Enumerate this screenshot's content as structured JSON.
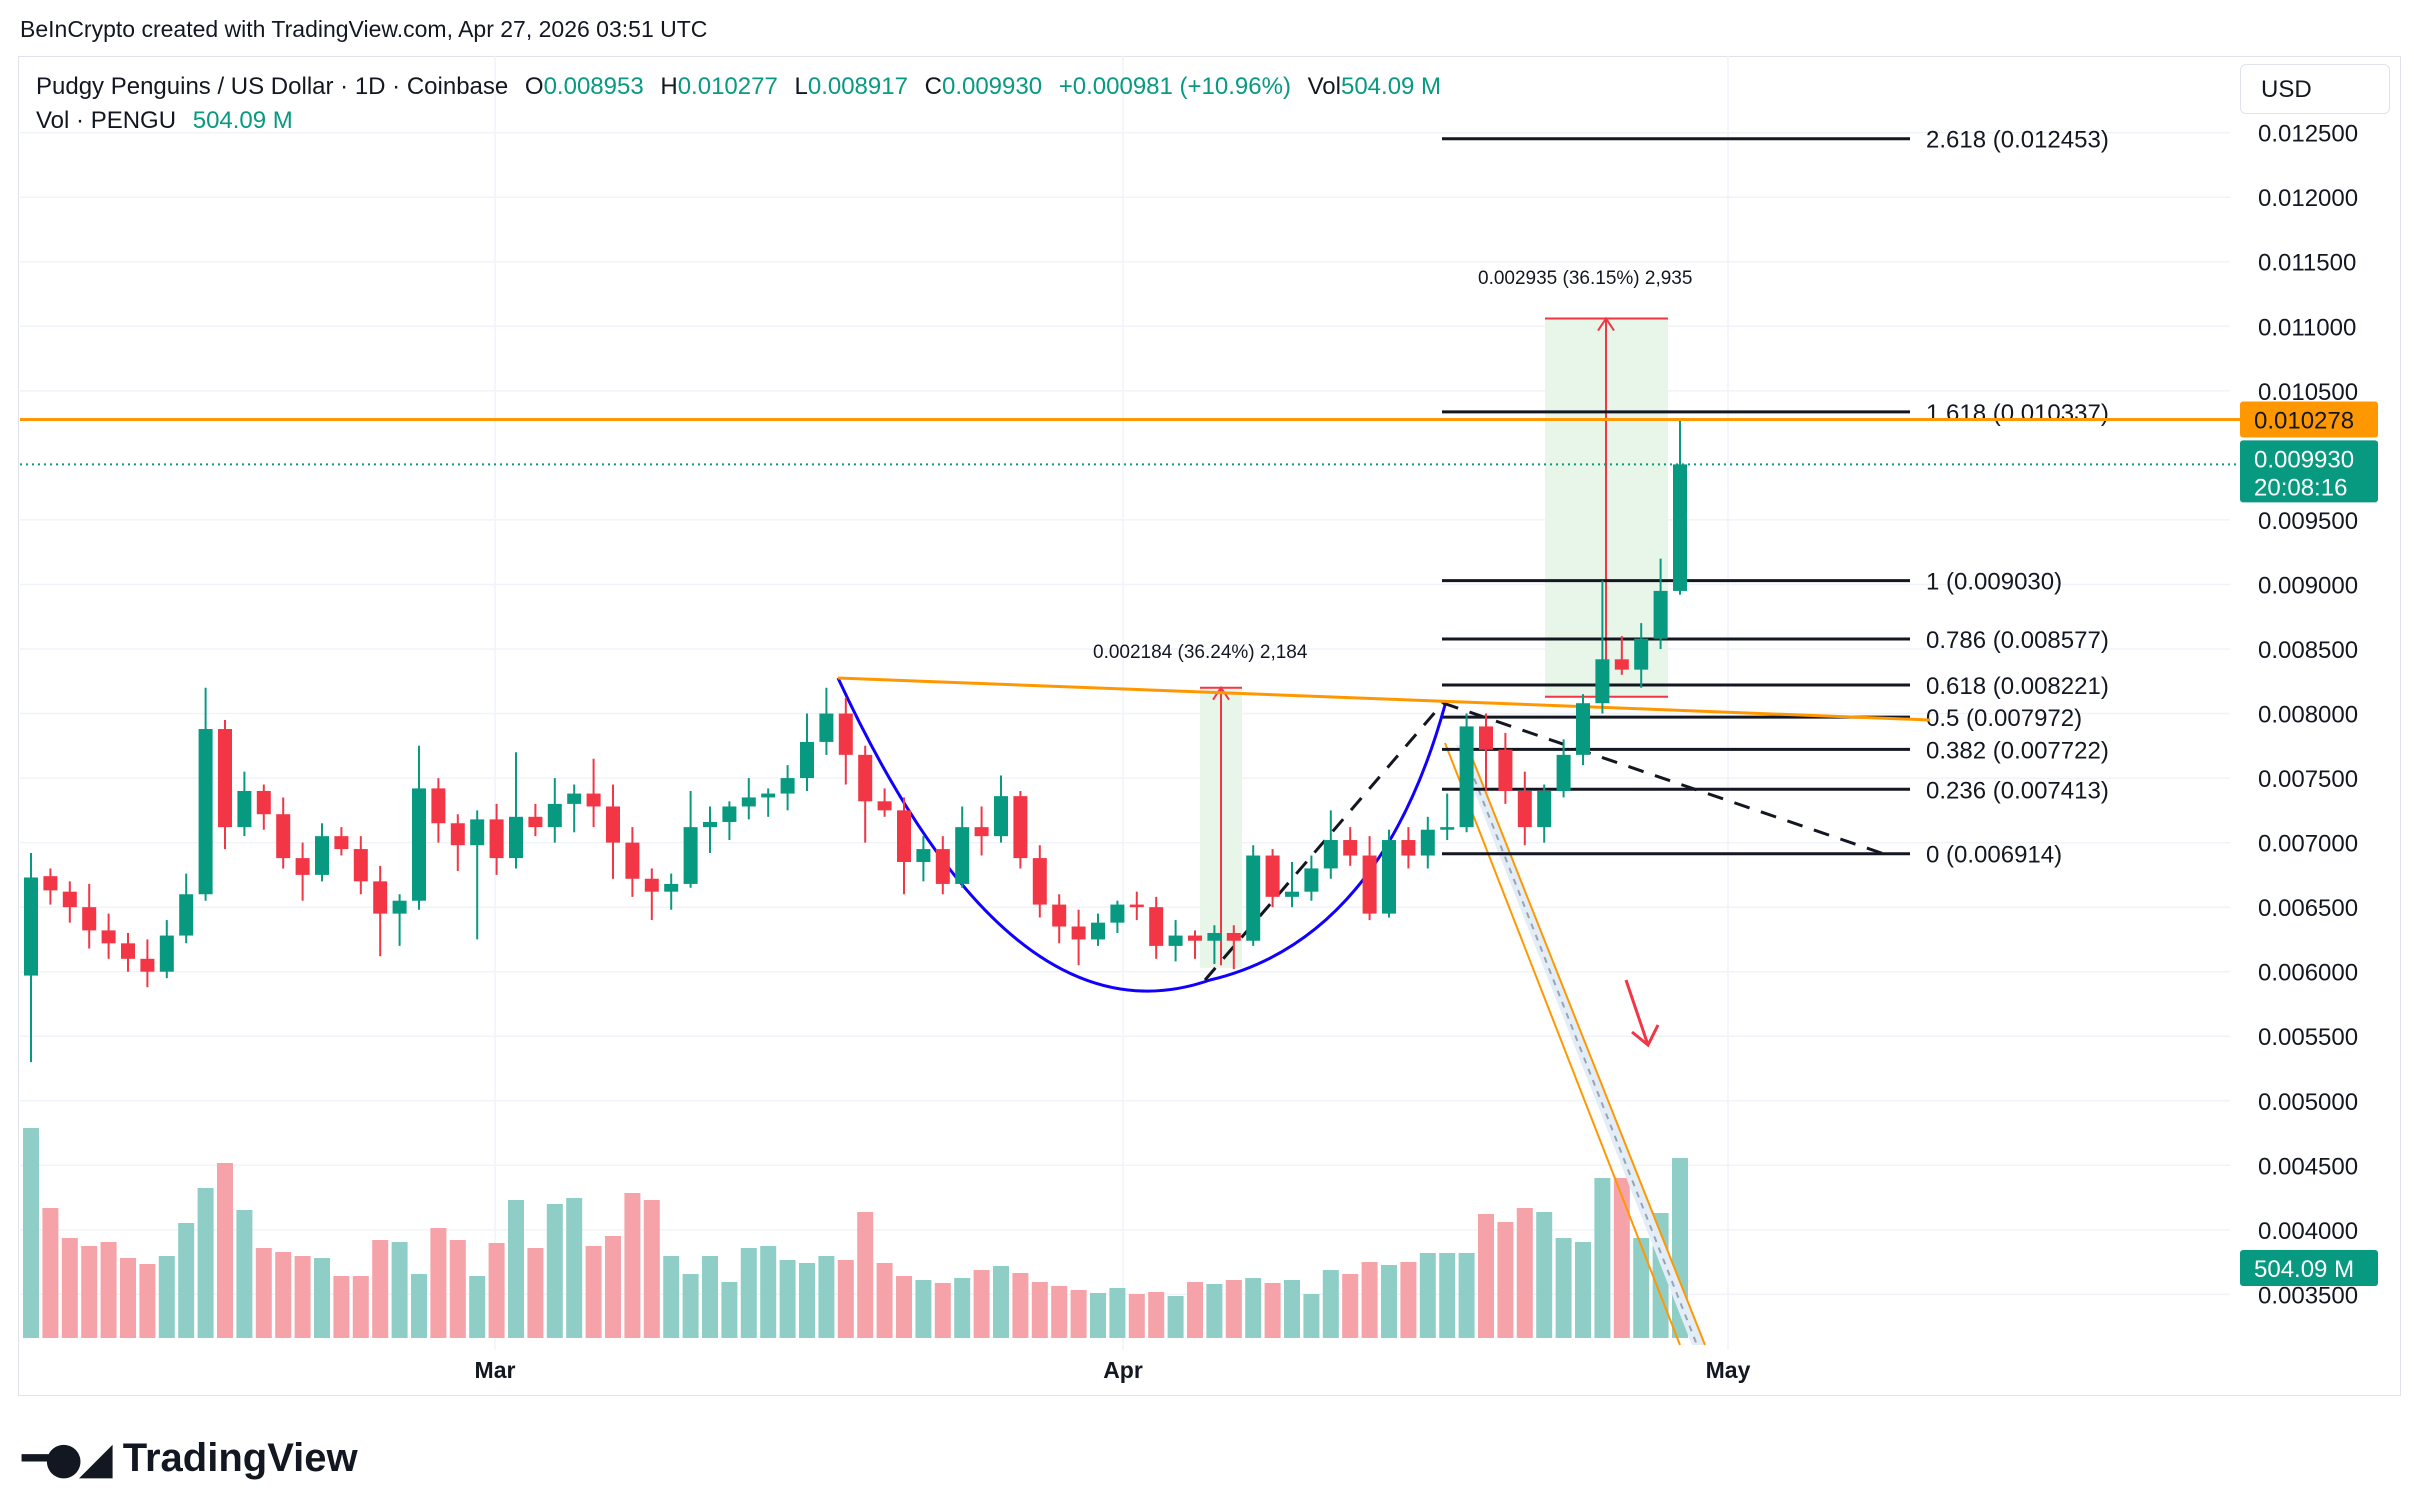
{
  "attribution": "BeInCrypto created with TradingView.com, Apr 27, 2026 03:51 UTC",
  "legend": {
    "symbol": "Pudgy Penguins / US Dollar · 1D · Coinbase",
    "o_label": "O",
    "o_value": "0.008953",
    "h_label": "H",
    "h_value": "0.010277",
    "l_label": "L",
    "l_value": "0.008917",
    "c_label": "C",
    "c_value": "0.009930",
    "change": "+0.000981 (+10.96%)",
    "vol_label": "Vol",
    "vol_value": "504.09 M",
    "vol_line_label": "Vol · PENGU",
    "vol_line_value": "504.09 M"
  },
  "currency_button": "USD",
  "footer_logo_text": "TradingView",
  "colors": {
    "up": "#089981",
    "down": "#f23645",
    "vol_up": "#8fcec7",
    "vol_down": "#f5a3a8",
    "resistance": "#ff9800",
    "curve": "#1000ff",
    "fib": "#131722",
    "measure_box": "#e8f5e9",
    "measure_line": "#f23645"
  },
  "chart_data": {
    "type": "candlestick",
    "title": "Pudgy Penguins / US Dollar · 1D · Coinbase",
    "timeframe": "1D",
    "x_ticks": [
      "Mar",
      "Apr",
      "May"
    ],
    "y_ticks": [
      "0.012500",
      "0.012000",
      "0.011500",
      "0.011000",
      "0.010500",
      "0.009500",
      "0.009000",
      "0.008500",
      "0.008000",
      "0.007500",
      "0.007000",
      "0.006500",
      "0.006000",
      "0.005500",
      "0.005000",
      "0.004500",
      "0.004000",
      "0.003500"
    ],
    "y_range": [
      0.0032,
      0.0127
    ],
    "candles": [
      {
        "o": 0.00597,
        "h": 0.00692,
        "l": 0.0053,
        "c": 0.00673
      },
      {
        "o": 0.00674,
        "h": 0.0068,
        "l": 0.00652,
        "c": 0.00663
      },
      {
        "o": 0.00662,
        "h": 0.0067,
        "l": 0.00638,
        "c": 0.0065
      },
      {
        "o": 0.0065,
        "h": 0.00668,
        "l": 0.00618,
        "c": 0.00632
      },
      {
        "o": 0.00632,
        "h": 0.00645,
        "l": 0.0061,
        "c": 0.00622
      },
      {
        "o": 0.00622,
        "h": 0.0063,
        "l": 0.006,
        "c": 0.0061
      },
      {
        "o": 0.0061,
        "h": 0.00625,
        "l": 0.00588,
        "c": 0.006
      },
      {
        "o": 0.006,
        "h": 0.0064,
        "l": 0.00595,
        "c": 0.00628
      },
      {
        "o": 0.00628,
        "h": 0.00676,
        "l": 0.00622,
        "c": 0.0066
      },
      {
        "o": 0.0066,
        "h": 0.0082,
        "l": 0.00655,
        "c": 0.00788
      },
      {
        "o": 0.00788,
        "h": 0.00795,
        "l": 0.00695,
        "c": 0.00712
      },
      {
        "o": 0.00712,
        "h": 0.00755,
        "l": 0.00705,
        "c": 0.0074
      },
      {
        "o": 0.0074,
        "h": 0.00745,
        "l": 0.0071,
        "c": 0.00722
      },
      {
        "o": 0.00722,
        "h": 0.00735,
        "l": 0.0068,
        "c": 0.00688
      },
      {
        "o": 0.00688,
        "h": 0.007,
        "l": 0.00655,
        "c": 0.00675
      },
      {
        "o": 0.00675,
        "h": 0.00715,
        "l": 0.0067,
        "c": 0.00705
      },
      {
        "o": 0.00705,
        "h": 0.00712,
        "l": 0.0069,
        "c": 0.00695
      },
      {
        "o": 0.00695,
        "h": 0.00705,
        "l": 0.0066,
        "c": 0.0067
      },
      {
        "o": 0.0067,
        "h": 0.00682,
        "l": 0.00612,
        "c": 0.00645
      },
      {
        "o": 0.00645,
        "h": 0.0066,
        "l": 0.0062,
        "c": 0.00655
      },
      {
        "o": 0.00655,
        "h": 0.00775,
        "l": 0.00648,
        "c": 0.00742
      },
      {
        "o": 0.00742,
        "h": 0.0075,
        "l": 0.007,
        "c": 0.00715
      },
      {
        "o": 0.00715,
        "h": 0.00722,
        "l": 0.00678,
        "c": 0.00698
      },
      {
        "o": 0.00698,
        "h": 0.00725,
        "l": 0.00625,
        "c": 0.00718
      },
      {
        "o": 0.00718,
        "h": 0.0073,
        "l": 0.00675,
        "c": 0.00688
      },
      {
        "o": 0.00688,
        "h": 0.0077,
        "l": 0.0068,
        "c": 0.0072
      },
      {
        "o": 0.0072,
        "h": 0.0073,
        "l": 0.00705,
        "c": 0.00712
      },
      {
        "o": 0.00712,
        "h": 0.0075,
        "l": 0.007,
        "c": 0.0073
      },
      {
        "o": 0.0073,
        "h": 0.00745,
        "l": 0.00708,
        "c": 0.00738
      },
      {
        "o": 0.00738,
        "h": 0.00765,
        "l": 0.00712,
        "c": 0.00728
      },
      {
        "o": 0.00728,
        "h": 0.00745,
        "l": 0.00672,
        "c": 0.007
      },
      {
        "o": 0.007,
        "h": 0.00712,
        "l": 0.00658,
        "c": 0.00672
      },
      {
        "o": 0.00672,
        "h": 0.0068,
        "l": 0.0064,
        "c": 0.00662
      },
      {
        "o": 0.00662,
        "h": 0.00676,
        "l": 0.00648,
        "c": 0.00668
      },
      {
        "o": 0.00668,
        "h": 0.0074,
        "l": 0.00665,
        "c": 0.00712
      },
      {
        "o": 0.00712,
        "h": 0.00728,
        "l": 0.00692,
        "c": 0.00716
      },
      {
        "o": 0.00716,
        "h": 0.00732,
        "l": 0.00702,
        "c": 0.00728
      },
      {
        "o": 0.00728,
        "h": 0.0075,
        "l": 0.00718,
        "c": 0.00735
      },
      {
        "o": 0.00735,
        "h": 0.00742,
        "l": 0.0072,
        "c": 0.00738
      },
      {
        "o": 0.00738,
        "h": 0.0076,
        "l": 0.00725,
        "c": 0.0075
      },
      {
        "o": 0.0075,
        "h": 0.008,
        "l": 0.0074,
        "c": 0.00778
      },
      {
        "o": 0.00778,
        "h": 0.0082,
        "l": 0.00768,
        "c": 0.008
      },
      {
        "o": 0.008,
        "h": 0.00812,
        "l": 0.00745,
        "c": 0.00768
      },
      {
        "o": 0.00768,
        "h": 0.00775,
        "l": 0.007,
        "c": 0.00732
      },
      {
        "o": 0.00732,
        "h": 0.00742,
        "l": 0.0072,
        "c": 0.00725
      },
      {
        "o": 0.00725,
        "h": 0.00735,
        "l": 0.0066,
        "c": 0.00685
      },
      {
        "o": 0.00685,
        "h": 0.00705,
        "l": 0.0067,
        "c": 0.00695
      },
      {
        "o": 0.00695,
        "h": 0.00705,
        "l": 0.0066,
        "c": 0.00668
      },
      {
        "o": 0.00668,
        "h": 0.00728,
        "l": 0.00665,
        "c": 0.00712
      },
      {
        "o": 0.00712,
        "h": 0.00728,
        "l": 0.0069,
        "c": 0.00705
      },
      {
        "o": 0.00705,
        "h": 0.00752,
        "l": 0.007,
        "c": 0.00736
      },
      {
        "o": 0.00736,
        "h": 0.0074,
        "l": 0.0068,
        "c": 0.00688
      },
      {
        "o": 0.00688,
        "h": 0.00698,
        "l": 0.00642,
        "c": 0.00652
      },
      {
        "o": 0.00652,
        "h": 0.0066,
        "l": 0.00622,
        "c": 0.00635
      },
      {
        "o": 0.00635,
        "h": 0.00648,
        "l": 0.00605,
        "c": 0.00625
      },
      {
        "o": 0.00625,
        "h": 0.00645,
        "l": 0.0062,
        "c": 0.00638
      },
      {
        "o": 0.00638,
        "h": 0.00655,
        "l": 0.0063,
        "c": 0.00652
      },
      {
        "o": 0.00652,
        "h": 0.00662,
        "l": 0.0064,
        "c": 0.0065
      },
      {
        "o": 0.0065,
        "h": 0.00658,
        "l": 0.0061,
        "c": 0.0062
      },
      {
        "o": 0.0062,
        "h": 0.0064,
        "l": 0.00608,
        "c": 0.00628
      },
      {
        "o": 0.00628,
        "h": 0.00632,
        "l": 0.0061,
        "c": 0.00624
      },
      {
        "o": 0.00624,
        "h": 0.00636,
        "l": 0.00606,
        "c": 0.0063
      },
      {
        "o": 0.0063,
        "h": 0.00636,
        "l": 0.00602,
        "c": 0.00624
      },
      {
        "o": 0.00624,
        "h": 0.00698,
        "l": 0.0062,
        "c": 0.0069
      },
      {
        "o": 0.0069,
        "h": 0.00695,
        "l": 0.0065,
        "c": 0.00658
      },
      {
        "o": 0.00658,
        "h": 0.00685,
        "l": 0.0065,
        "c": 0.00662
      },
      {
        "o": 0.00662,
        "h": 0.0069,
        "l": 0.00655,
        "c": 0.0068
      },
      {
        "o": 0.0068,
        "h": 0.00725,
        "l": 0.00672,
        "c": 0.00702
      },
      {
        "o": 0.00702,
        "h": 0.00712,
        "l": 0.00682,
        "c": 0.0069
      },
      {
        "o": 0.0069,
        "h": 0.00705,
        "l": 0.0064,
        "c": 0.00645
      },
      {
        "o": 0.00645,
        "h": 0.0071,
        "l": 0.00642,
        "c": 0.00702
      },
      {
        "o": 0.00702,
        "h": 0.00712,
        "l": 0.0068,
        "c": 0.0069
      },
      {
        "o": 0.0069,
        "h": 0.0072,
        "l": 0.0068,
        "c": 0.0071
      },
      {
        "o": 0.0071,
        "h": 0.00738,
        "l": 0.00702,
        "c": 0.00712
      },
      {
        "o": 0.00712,
        "h": 0.008,
        "l": 0.00708,
        "c": 0.0079
      },
      {
        "o": 0.0079,
        "h": 0.008,
        "l": 0.0074,
        "c": 0.00772
      },
      {
        "o": 0.00772,
        "h": 0.00785,
        "l": 0.0073,
        "c": 0.0074
      },
      {
        "o": 0.0074,
        "h": 0.00755,
        "l": 0.00698,
        "c": 0.00712
      },
      {
        "o": 0.00712,
        "h": 0.00745,
        "l": 0.007,
        "c": 0.0074
      },
      {
        "o": 0.0074,
        "h": 0.0078,
        "l": 0.00735,
        "c": 0.00768
      },
      {
        "o": 0.00768,
        "h": 0.00815,
        "l": 0.0076,
        "c": 0.00808
      },
      {
        "o": 0.00808,
        "h": 0.00903,
        "l": 0.008,
        "c": 0.00842
      },
      {
        "o": 0.00842,
        "h": 0.0086,
        "l": 0.0083,
        "c": 0.00834
      },
      {
        "o": 0.00834,
        "h": 0.0087,
        "l": 0.0082,
        "c": 0.00858
      },
      {
        "o": 0.00858,
        "h": 0.0092,
        "l": 0.0085,
        "c": 0.00895
      },
      {
        "o": 0.00895,
        "h": 0.01028,
        "l": 0.00892,
        "c": 0.00993
      }
    ],
    "volume": {
      "values": [
        210,
        130,
        100,
        92,
        96,
        80,
        74,
        82,
        115,
        150,
        175,
        128,
        90,
        86,
        82,
        80,
        62,
        62,
        98,
        96,
        64,
        110,
        98,
        62,
        95,
        138,
        90,
        134,
        140,
        92,
        102,
        145,
        138,
        82,
        64,
        82,
        56,
        90,
        92,
        78,
        75,
        82,
        78,
        126,
        75,
        62,
        58,
        55,
        60,
        68,
        72,
        65,
        56,
        52,
        48,
        45,
        50,
        44,
        46,
        42,
        56,
        54,
        58,
        60,
        55,
        58,
        44,
        68,
        64,
        76,
        73,
        76,
        85,
        85,
        85,
        124,
        116,
        130,
        126,
        100,
        96,
        160,
        160,
        100,
        125,
        180
      ],
      "last_value": "504.09 M"
    },
    "annotations": {
      "current_price": "0.009930",
      "countdown": "20:08:16",
      "resistance_level": "0.010278",
      "fib_levels": [
        {
          "label": "2.618 (0.012453)",
          "value": 0.012453
        },
        {
          "label": "1.618 (0.010337)",
          "value": 0.010337
        },
        {
          "label": "1 (0.009030)",
          "value": 0.00903
        },
        {
          "label": "0.786 (0.008577)",
          "value": 0.008577
        },
        {
          "label": "0.618 (0.008221)",
          "value": 0.008221
        },
        {
          "label": "0.5 (0.007972)",
          "value": 0.007972
        },
        {
          "label": "0.382 (0.007722)",
          "value": 0.007722
        },
        {
          "label": "0.236 (0.007413)",
          "value": 0.007413
        },
        {
          "label": "0 (0.006914)",
          "value": 0.006914
        }
      ],
      "measure_1": "0.002184 (36.24%) 2,184",
      "measure_2": "0.002935 (36.15%) 2,935"
    }
  }
}
